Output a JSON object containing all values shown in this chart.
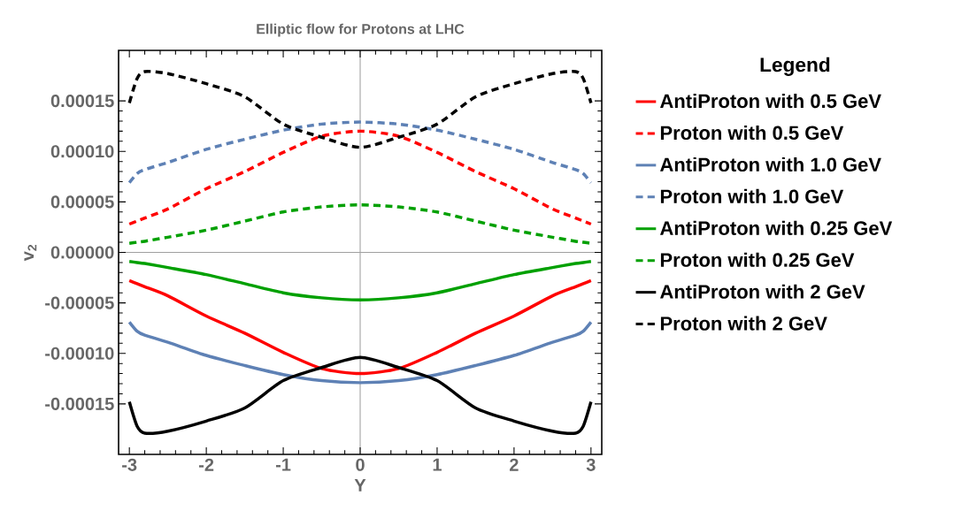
{
  "chart_data": {
    "type": "line",
    "title": "Elliptic flow for Protons at LHC",
    "xlabel": "Y",
    "ylabel": "v$_{2}$",
    "legend_title": "Legend",
    "legend": "right",
    "x": [
      -3,
      -2.9,
      -2.8,
      -2.5,
      -2,
      -1.5,
      -1,
      -0.5,
      0,
      0.5,
      1,
      1.5,
      2,
      2.5,
      2.8,
      2.9,
      3
    ],
    "xlim": [
      -3.14,
      3.14
    ],
    "ylim": [
      -0.0002,
      0.0002
    ],
    "xticks": [
      {
        "value": -3,
        "label": "-3"
      },
      {
        "value": -2,
        "label": "-2"
      },
      {
        "value": -1,
        "label": "-1"
      },
      0,
      1,
      2,
      3
    ],
    "yticks": [
      {
        "value": -0.00015,
        "label": "-0.00015"
      },
      {
        "value": -0.0001,
        "label": "-0.00010"
      },
      {
        "value": -5e-05,
        "label": "-0.00005"
      },
      {
        "value": 0,
        "label": "0.00000"
      },
      {
        "value": 5e-05,
        "label": "0.00005"
      },
      {
        "value": 0.0001,
        "label": "0.00010"
      },
      {
        "value": 0.00015,
        "label": "0.00015"
      }
    ],
    "series": [
      {
        "name": "AntiProton with 0.5 GeV",
        "color": "#ff0000",
        "line_style": "solid",
        "values": [
          -2.8e-05,
          -3.1e-05,
          -3.4e-05,
          -4.3e-05,
          -6.3e-05,
          -8e-05,
          -9.9e-05,
          -0.000115,
          -0.00012,
          -0.000115,
          -9.9e-05,
          -8e-05,
          -6.3e-05,
          -4.3e-05,
          -3.4e-05,
          -3.1e-05,
          -2.8e-05
        ]
      },
      {
        "name": "Proton with 0.5 GeV",
        "color": "#ff0000",
        "line_style": "dashed",
        "values": [
          2.8e-05,
          3.1e-05,
          3.4e-05,
          4.3e-05,
          6.3e-05,
          8e-05,
          9.9e-05,
          0.000115,
          0.00012,
          0.000115,
          9.9e-05,
          8e-05,
          6.3e-05,
          4.3e-05,
          3.4e-05,
          3.1e-05,
          2.8e-05
        ]
      },
      {
        "name": "AntiProton with 1.0 GeV",
        "color": "#5e81b5",
        "line_style": "solid",
        "values": [
          -6.9e-05,
          -7.8e-05,
          -8.2e-05,
          -8.9e-05,
          -0.000102,
          -0.000112,
          -0.000121,
          -0.000127,
          -0.000129,
          -0.000127,
          -0.000121,
          -0.000112,
          -0.000102,
          -8.9e-05,
          -8.2e-05,
          -7.8e-05,
          -6.9e-05
        ]
      },
      {
        "name": "Proton with 1.0 GeV",
        "color": "#5e81b5",
        "line_style": "dashed",
        "values": [
          6.9e-05,
          7.8e-05,
          8.2e-05,
          8.9e-05,
          0.000102,
          0.000112,
          0.000121,
          0.000127,
          0.000129,
          0.000127,
          0.000121,
          0.000112,
          0.000102,
          8.9e-05,
          8.2e-05,
          7.8e-05,
          6.9e-05
        ]
      },
      {
        "name": "AntiProton with 0.25 GeV",
        "color": "#00a000",
        "line_style": "solid",
        "values": [
          -9e-06,
          -1e-05,
          -1.1e-05,
          -1.5e-05,
          -2.2e-05,
          -3.1e-05,
          -4e-05,
          -4.5e-05,
          -4.7e-05,
          -4.5e-05,
          -4e-05,
          -3.1e-05,
          -2.2e-05,
          -1.5e-05,
          -1.1e-05,
          -1e-05,
          -9e-06
        ]
      },
      {
        "name": "Proton with 0.25 GeV",
        "color": "#00a000",
        "line_style": "dashed",
        "values": [
          9e-06,
          1e-05,
          1.1e-05,
          1.5e-05,
          2.2e-05,
          3.1e-05,
          4e-05,
          4.5e-05,
          4.7e-05,
          4.5e-05,
          4e-05,
          3.1e-05,
          2.2e-05,
          1.5e-05,
          1.1e-05,
          1e-05,
          9e-06
        ]
      },
      {
        "name": "AntiProton with 2 GeV",
        "color": "#000000",
        "line_style": "solid",
        "values": [
          -0.000148,
          -0.000172,
          -0.000179,
          -0.000177,
          -0.000167,
          -0.000154,
          -0.000127,
          -0.000114,
          -0.000104,
          -0.000114,
          -0.000127,
          -0.000154,
          -0.000167,
          -0.000177,
          -0.000179,
          -0.000172,
          -0.000148
        ]
      },
      {
        "name": "Proton with 2 GeV",
        "color": "#000000",
        "line_style": "dashed",
        "values": [
          0.000148,
          0.000172,
          0.000179,
          0.000177,
          0.000167,
          0.000154,
          0.000127,
          0.000114,
          0.000104,
          0.000114,
          0.000127,
          0.000154,
          0.000167,
          0.000177,
          0.000179,
          0.000172,
          0.000148
        ]
      }
    ]
  }
}
